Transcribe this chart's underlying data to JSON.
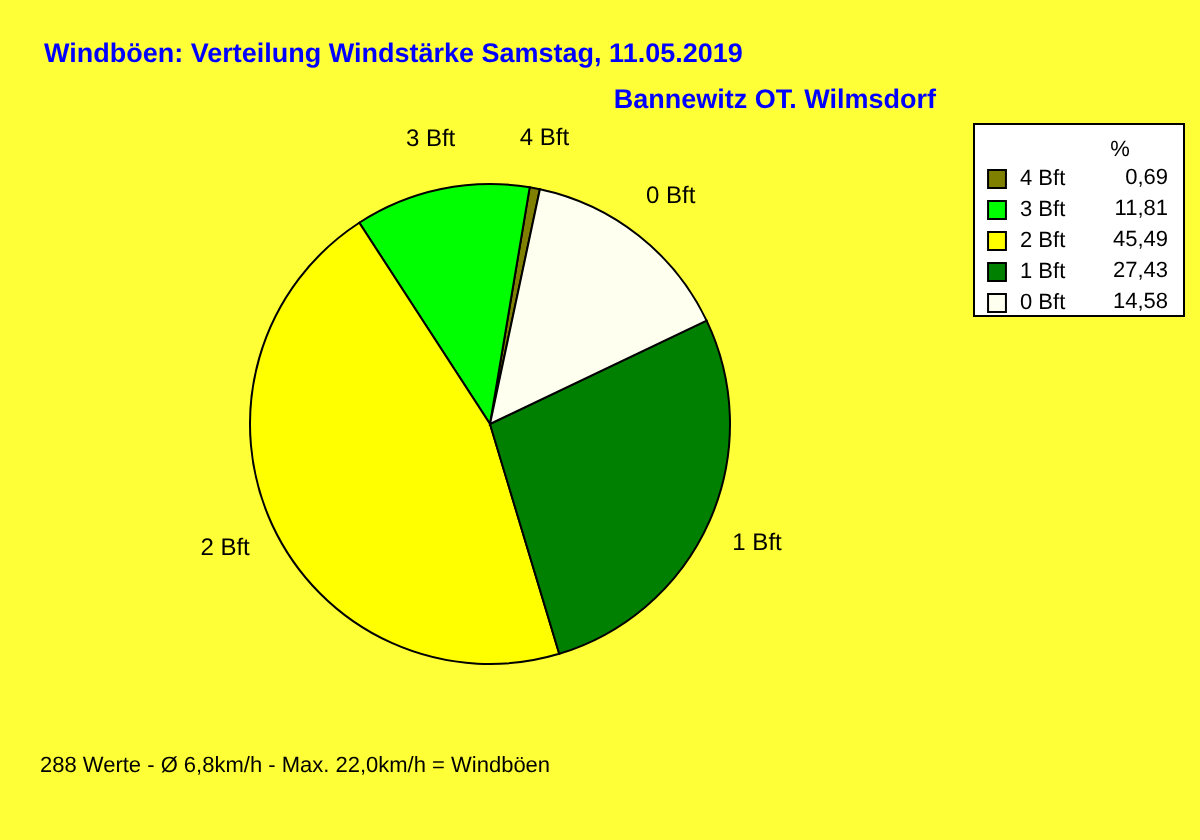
{
  "chart_data": {
    "type": "pie",
    "title": "Windböen: Verteilung Windstärke  Samstag, 11.05.2019",
    "subtitle": "Bannewitz OT. Wilmsdorf",
    "legend_title": "%",
    "legend": "top right",
    "categories": [
      "4 Bft",
      "3 Bft",
      "2 Bft",
      "1 Bft",
      "0 Bft"
    ],
    "values": [
      0.69,
      11.81,
      45.49,
      27.43,
      14.58
    ],
    "colors": [
      "#808000",
      "#00ff00",
      "#ffff00",
      "#008000",
      "#fffff0"
    ],
    "value_labels": [
      "0,69",
      "11,81",
      "45,49",
      "27,43",
      "14,58"
    ],
    "annotations": [
      "288 Werte   -   Ø 6,8km/h  -  Max. 22,0km/h = Windböen"
    ]
  }
}
